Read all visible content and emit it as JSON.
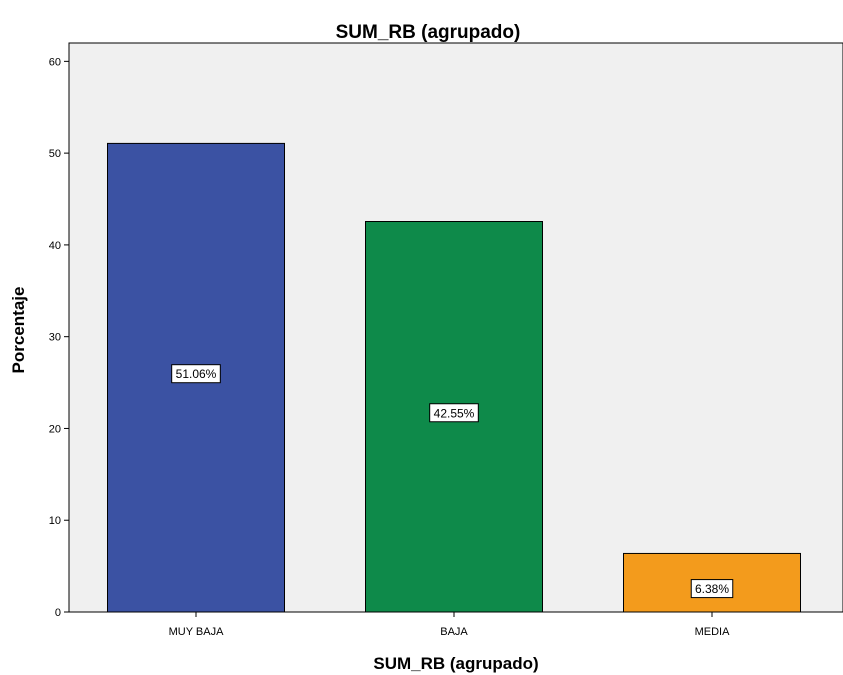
{
  "chart_data": {
    "type": "bar",
    "title": "SUM_RB (agrupado)",
    "xlabel": "SUM_RB (agrupado)",
    "ylabel": "Porcentaje",
    "categories": [
      "MUY BAJA",
      "BAJA",
      "MEDIA"
    ],
    "values": [
      51.06,
      42.55,
      6.38
    ],
    "data_labels": [
      "51.06%",
      "42.55%",
      "6.38%"
    ],
    "colors": [
      "#3b52a3",
      "#0e8a4a",
      "#f39b1c"
    ],
    "ylim": [
      0,
      62
    ],
    "yticks": [
      0,
      10,
      20,
      30,
      40,
      50,
      60
    ],
    "grid": false,
    "legend": "none",
    "plot_background": "#f0f0f0"
  }
}
